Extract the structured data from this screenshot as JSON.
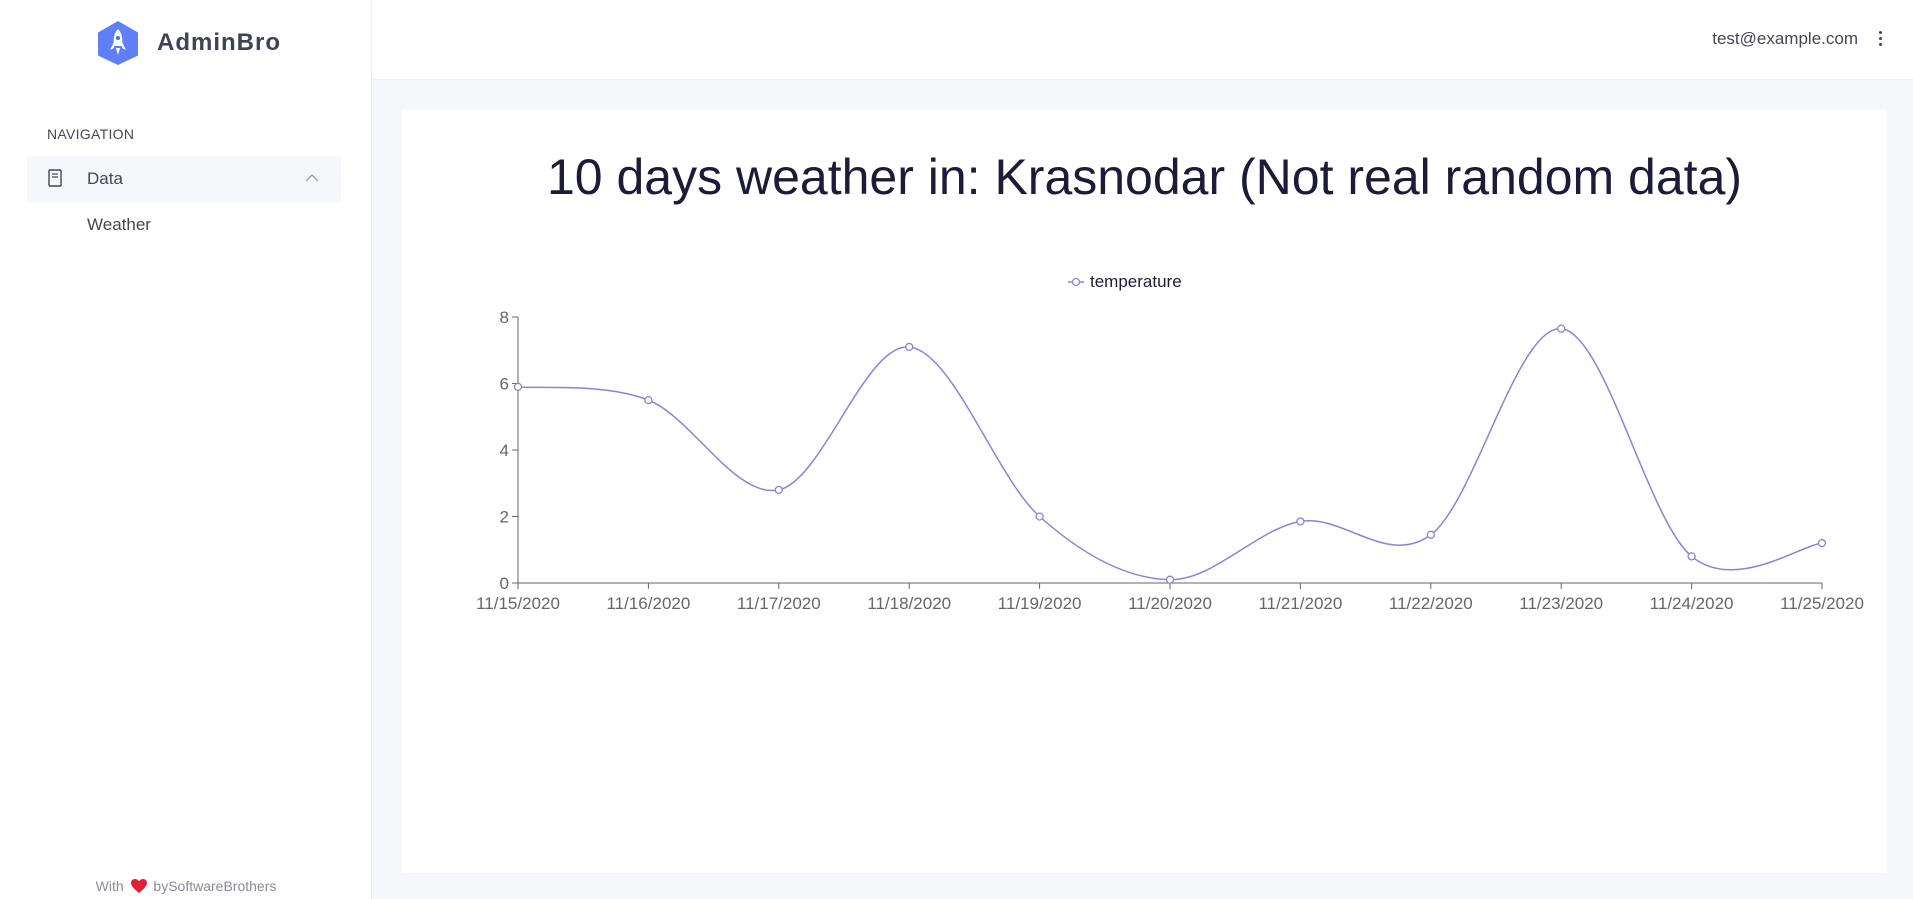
{
  "app": {
    "brand": "AdminBro",
    "accent": "#4268f6",
    "user_email": "test@example.com"
  },
  "sidebar": {
    "heading": "NAVIGATION",
    "group_label": "Data",
    "group_icon": "document-icon",
    "items": [
      {
        "label": "Weather"
      }
    ],
    "footer": {
      "prefix": "With",
      "suffix": "bySoftwareBrothers",
      "icon": "heart-icon",
      "heart_color": "#e11f33"
    }
  },
  "chart_data": {
    "type": "line",
    "title": "10 days weather in: Krasnodar (Not real random data)",
    "line_color": "#8884d8",
    "grid": false,
    "legend_position": "top-center",
    "x": [
      "11/15/2020",
      "11/16/2020",
      "11/17/2020",
      "11/18/2020",
      "11/19/2020",
      "11/20/2020",
      "11/21/2020",
      "11/22/2020",
      "11/23/2020",
      "11/24/2020",
      "11/25/2020"
    ],
    "series": [
      {
        "name": "temperature",
        "values": [
          5.9,
          5.5,
          2.8,
          7.1,
          2.0,
          0.1,
          1.85,
          1.45,
          7.65,
          0.8,
          1.2
        ]
      }
    ],
    "ylim": [
      0,
      8
    ],
    "yticks": [
      0,
      2,
      4,
      6,
      8
    ]
  }
}
